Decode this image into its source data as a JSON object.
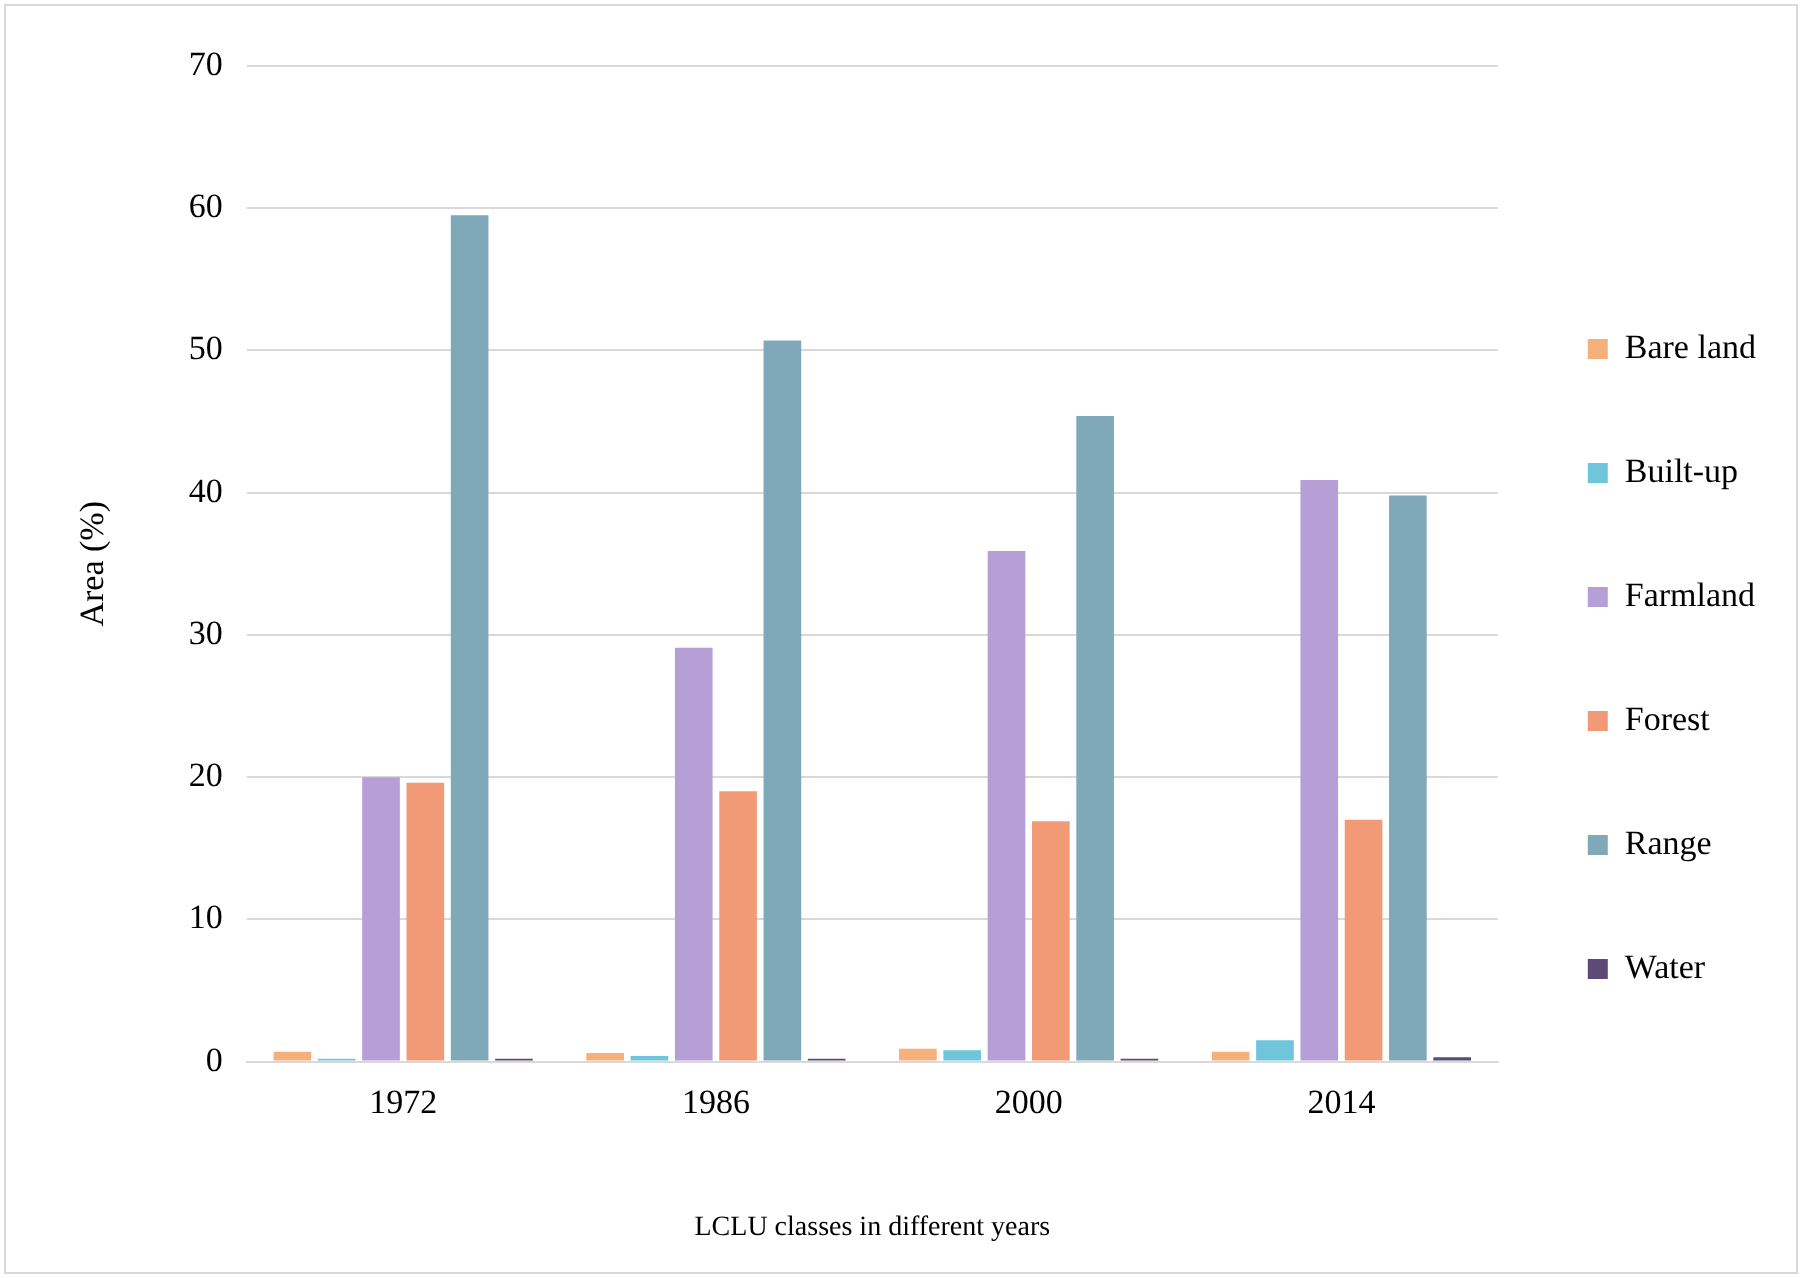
{
  "chart_data": {
    "type": "bar",
    "xlabel": "LCLU classes in different years",
    "ylabel": "Area (%)",
    "categories": [
      "1972",
      "1986",
      "2000",
      "2014"
    ],
    "series": [
      {
        "name": "Bare land",
        "color": "#f6b07c",
        "values": [
          0.7,
          0.6,
          0.9,
          0.7
        ]
      },
      {
        "name": "Built-up",
        "color": "#6fc6dc",
        "values": [
          0.2,
          0.4,
          0.8,
          1.5
        ]
      },
      {
        "name": "Farmland",
        "color": "#b59fd6",
        "values": [
          20.0,
          29.1,
          35.9,
          40.9
        ]
      },
      {
        "name": "Forest",
        "color": "#f29a76",
        "values": [
          19.6,
          19.0,
          16.9,
          17.0
        ]
      },
      {
        "name": "Range",
        "color": "#7fa9b8",
        "values": [
          59.5,
          50.7,
          45.4,
          39.8
        ]
      },
      {
        "name": "Water",
        "color": "#5d4a78",
        "values": [
          0.2,
          0.2,
          0.2,
          0.3
        ]
      }
    ],
    "ylim": [
      0,
      70
    ],
    "yticks": [
      0,
      10,
      20,
      30,
      40,
      50,
      60,
      70
    ],
    "grid": "y",
    "legend": "right"
  }
}
